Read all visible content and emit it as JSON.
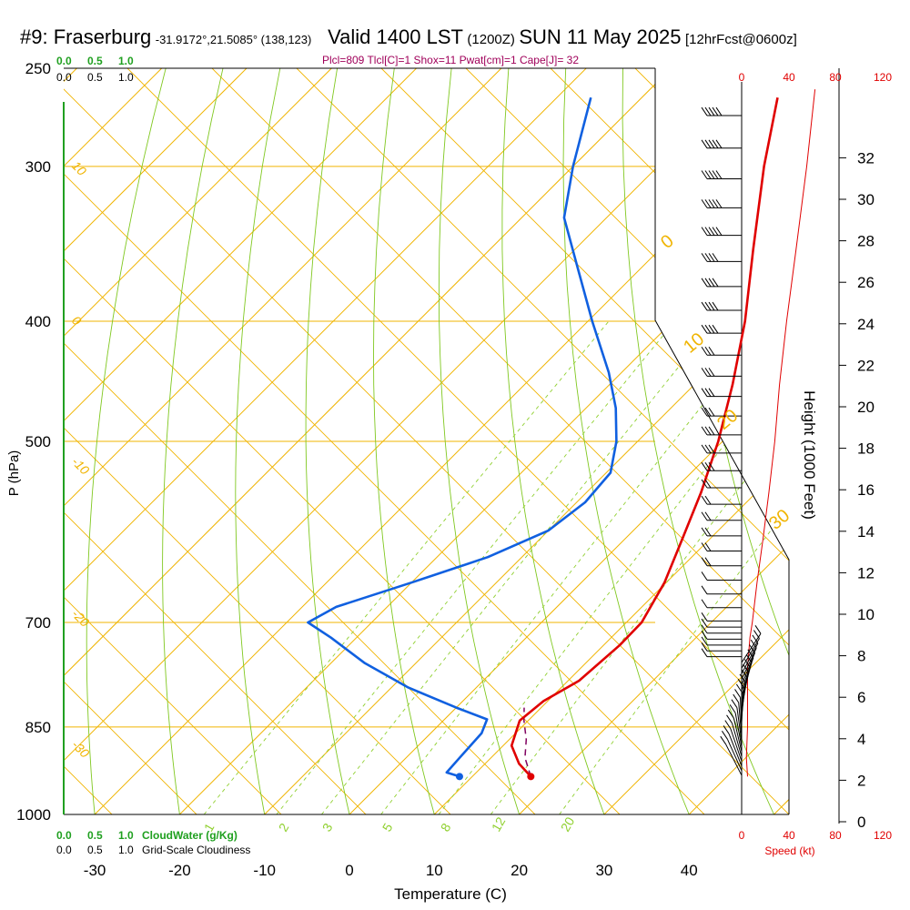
{
  "header": {
    "station": "#9: Fraserburg",
    "coords": "-31.9172°,21.5085° (138,123)",
    "valid": "Valid 1400 LST",
    "zulu": "(1200Z)",
    "date": "SUN 11 May 2025",
    "forecast": "[12hrFcst@0600z]",
    "params": "Plcl=809 Tlcl[C]=1 Shox=11 Pwat[cm]=1 Cape[J]= 32"
  },
  "colors": {
    "isotherm": "#f0b400",
    "dry_adiabat": "#80c820",
    "mixing_ratio": "#90d030",
    "temperature": "#e00000",
    "dewpoint": "#1060e0",
    "parcel": "#800060",
    "cloud": "#20a020",
    "speed": "#e00000"
  },
  "chart_data": {
    "type": "line",
    "skewt": true,
    "xlabel": "Temperature (C)",
    "ylabel": "P (hPa)",
    "right_label": "Height (1000 Feet)",
    "pressure_ticks": [
      250,
      300,
      400,
      500,
      700,
      850,
      1000
    ],
    "temperature_ticks": [
      -30,
      -20,
      -10,
      0,
      10,
      20,
      30,
      40
    ],
    "height_ticks": [
      0,
      2,
      4,
      6,
      8,
      10,
      12,
      14,
      16,
      18,
      20,
      22,
      24,
      26,
      28,
      30,
      32
    ],
    "isotherm_labels": [
      {
        "text": "10",
        "T": 10,
        "p": 300
      },
      {
        "text": "0",
        "T": 0,
        "p": 400
      },
      {
        "text": "-10",
        "T": -10,
        "p": 520
      },
      {
        "text": "-20",
        "T": -20,
        "p": 690
      },
      {
        "text": "-30",
        "T": -30,
        "p": 880
      }
    ],
    "theta_labels": [
      {
        "text": "0",
        "p": 350
      },
      {
        "text": "10",
        "p": 425
      },
      {
        "text": "20",
        "p": 490
      },
      {
        "text": "30",
        "p": 590
      }
    ],
    "mixing_ratio_labels": [
      "1",
      "2",
      "3",
      "5",
      "8",
      "12",
      "20"
    ],
    "cloud_scale": [
      "0.0",
      "0.5",
      "1.0"
    ],
    "cloud_water_label": "CloudWater (g/Kg)",
    "cloudiness_label": "Grid-Scale Cloudiness",
    "speed_ticks": [
      "0",
      "40",
      "80",
      "120"
    ],
    "speed_label": "Speed (kt)",
    "temperature": [
      {
        "p": 932,
        "T": 16.9
      },
      {
        "p": 910,
        "T": 14.0
      },
      {
        "p": 880,
        "T": 11.0
      },
      {
        "p": 840,
        "T": 9.0
      },
      {
        "p": 810,
        "T": 9.5
      },
      {
        "p": 780,
        "T": 11.3
      },
      {
        "p": 730,
        "T": 11.9
      },
      {
        "p": 700,
        "T": 11.8
      },
      {
        "p": 650,
        "T": 9.8
      },
      {
        "p": 600,
        "T": 6.8
      },
      {
        "p": 550,
        "T": 3.5
      },
      {
        "p": 500,
        "T": -0.5
      },
      {
        "p": 450,
        "T": -5.5
      },
      {
        "p": 400,
        "T": -11.5
      },
      {
        "p": 350,
        "T": -19.0
      },
      {
        "p": 300,
        "T": -27.5
      },
      {
        "p": 264,
        "T": -34.0
      }
    ],
    "dewpoint": [
      {
        "p": 932,
        "T": 8.5
      },
      {
        "p": 925,
        "T": 6.5
      },
      {
        "p": 900,
        "T": 6.3
      },
      {
        "p": 860,
        "T": 6.0
      },
      {
        "p": 838,
        "T": 5.0
      },
      {
        "p": 820,
        "T": 0.0
      },
      {
        "p": 790,
        "T": -8.0
      },
      {
        "p": 755,
        "T": -16.0
      },
      {
        "p": 720,
        "T": -23.0
      },
      {
        "p": 700,
        "T": -27.5
      },
      {
        "p": 680,
        "T": -26.0
      },
      {
        "p": 650,
        "T": -20.0
      },
      {
        "p": 620,
        "T": -14.0
      },
      {
        "p": 590,
        "T": -10.0
      },
      {
        "p": 560,
        "T": -9.0
      },
      {
        "p": 530,
        "T": -9.5
      },
      {
        "p": 500,
        "T": -12.5
      },
      {
        "p": 470,
        "T": -16.5
      },
      {
        "p": 440,
        "T": -21.5
      },
      {
        "p": 400,
        "T": -29.5
      },
      {
        "p": 360,
        "T": -38.0
      },
      {
        "p": 330,
        "T": -45.0
      },
      {
        "p": 300,
        "T": -50.0
      },
      {
        "p": 264,
        "T": -56.0
      }
    ],
    "parcel": [
      {
        "p": 932,
        "T": 16.9
      },
      {
        "p": 900,
        "T": 14.0
      },
      {
        "p": 870,
        "T": 12.0
      },
      {
        "p": 840,
        "T": 9.5
      },
      {
        "p": 820,
        "T": 8.0
      }
    ],
    "surface_temperature": {
      "p": 932,
      "T": 16.9
    },
    "surface_dewpoint": {
      "p": 932,
      "T": 8.5
    },
    "wind_speed_profile": [
      {
        "p": 932,
        "speed": 5
      },
      {
        "p": 900,
        "speed": 4
      },
      {
        "p": 850,
        "speed": 5
      },
      {
        "p": 800,
        "speed": 5
      },
      {
        "p": 760,
        "speed": 5
      },
      {
        "p": 740,
        "speed": 6
      },
      {
        "p": 720,
        "speed": 7
      },
      {
        "p": 700,
        "speed": 9
      },
      {
        "p": 650,
        "speed": 13
      },
      {
        "p": 600,
        "speed": 18
      },
      {
        "p": 550,
        "speed": 23
      },
      {
        "p": 500,
        "speed": 28
      },
      {
        "p": 450,
        "speed": 32
      },
      {
        "p": 400,
        "speed": 38
      },
      {
        "p": 350,
        "speed": 46
      },
      {
        "p": 300,
        "speed": 55
      },
      {
        "p": 260,
        "speed": 62
      }
    ]
  }
}
